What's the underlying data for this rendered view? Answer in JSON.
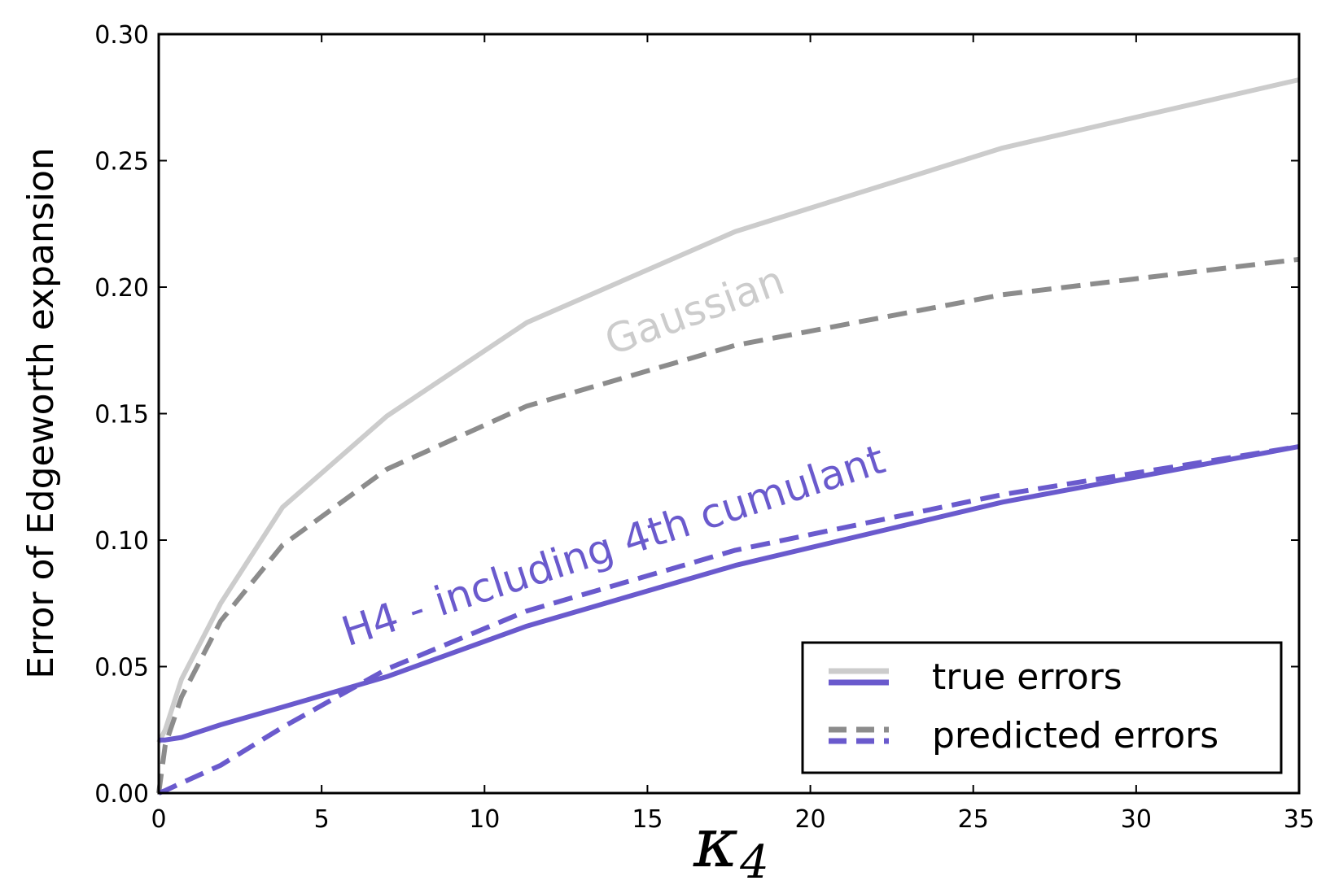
{
  "chart_data": {
    "type": "line",
    "title": "",
    "xlabel_symbol": "κ",
    "xlabel_subscript": "4",
    "ylabel": "Error of Edgeworth expansion",
    "xlim": [
      0,
      35
    ],
    "ylim": [
      0,
      0.3
    ],
    "x_ticks": [
      0,
      5,
      10,
      15,
      20,
      25,
      30,
      35
    ],
    "y_ticks": [
      0.0,
      0.05,
      0.1,
      0.15,
      0.2,
      0.25,
      0.3
    ],
    "x_tick_labels": [
      "0",
      "5",
      "10",
      "15",
      "20",
      "25",
      "30",
      "35"
    ],
    "y_tick_labels": [
      "0.00",
      "0.05",
      "0.10",
      "0.15",
      "0.20",
      "0.25",
      "0.30"
    ],
    "grid": false,
    "legend_position": "lower-right",
    "series": [
      {
        "group": "Gaussian",
        "kind": "true errors",
        "style": "solid",
        "color": "#cccccc",
        "x": [
          0,
          0.2,
          0.7,
          1.9,
          3.8,
          7.0,
          11.3,
          17.7,
          25.9,
          35.0
        ],
        "y": [
          0.02,
          0.025,
          0.045,
          0.075,
          0.113,
          0.149,
          0.186,
          0.222,
          0.255,
          0.282
        ]
      },
      {
        "group": "Gaussian",
        "kind": "predicted errors",
        "style": "dashed",
        "color": "#8c8c8c",
        "x": [
          0,
          0.2,
          0.7,
          1.9,
          3.8,
          7.0,
          11.3,
          17.7,
          25.9,
          35.0
        ],
        "y": [
          0.0,
          0.019,
          0.038,
          0.068,
          0.098,
          0.128,
          0.153,
          0.177,
          0.197,
          0.211
        ]
      },
      {
        "group": "H4",
        "kind": "true errors",
        "style": "solid",
        "color": "#6a5acd",
        "x": [
          0,
          0.2,
          0.7,
          1.9,
          3.8,
          7.0,
          11.3,
          17.7,
          25.9,
          35.0
        ],
        "y": [
          0.021,
          0.021,
          0.022,
          0.027,
          0.034,
          0.046,
          0.066,
          0.09,
          0.115,
          0.137
        ]
      },
      {
        "group": "H4",
        "kind": "predicted errors",
        "style": "dashed",
        "color": "#6a5acd",
        "x": [
          0,
          0.2,
          0.7,
          1.9,
          3.8,
          7.0,
          11.3,
          17.7,
          25.9,
          35.0
        ],
        "y": [
          0.0,
          0.001,
          0.004,
          0.011,
          0.026,
          0.049,
          0.072,
          0.096,
          0.118,
          0.137
        ]
      }
    ],
    "annotations": [
      {
        "text": "Gaussian",
        "color": "#cccccc",
        "x": 13.9,
        "y": 0.173,
        "angle": -20
      },
      {
        "text": "H4 - including 4th cumulant",
        "color": "#6a5acd",
        "x": 5.8,
        "y": 0.058,
        "angle": -18
      }
    ],
    "legend": [
      {
        "label": "true errors",
        "style": "solid",
        "colors": [
          "#cccccc",
          "#6a5acd"
        ]
      },
      {
        "label": "predicted errors",
        "style": "dashed",
        "colors": [
          "#8c8c8c",
          "#6a5acd"
        ]
      }
    ]
  }
}
